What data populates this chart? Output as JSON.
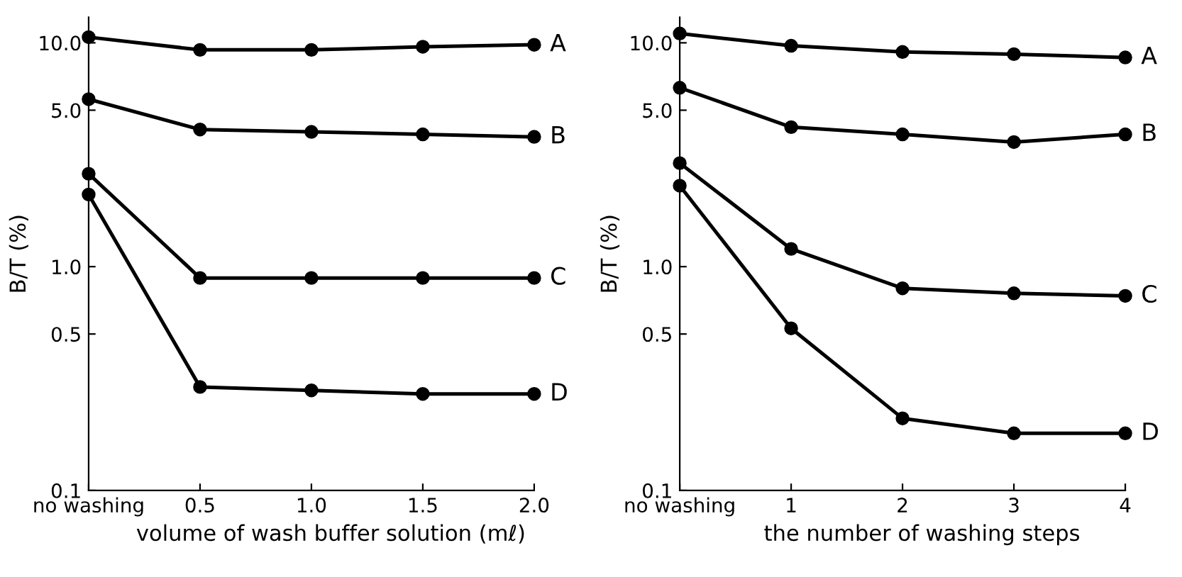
{
  "chart_data": [
    {
      "type": "line",
      "xlabel": "volume of wash buffer solution (mℓ)",
      "ylabel": "B/T (%)",
      "categories": [
        "no washing",
        "0.5",
        "1.0",
        "1.5",
        "2.0"
      ],
      "series": [
        {
          "name": "A",
          "color": "#000000",
          "values": [
            10.6,
            9.3,
            9.3,
            9.6,
            9.8
          ]
        },
        {
          "name": "B",
          "color": "#000000",
          "values": [
            5.6,
            4.1,
            4.0,
            3.9,
            3.8
          ]
        },
        {
          "name": "C",
          "color": "#000000",
          "values": [
            2.6,
            0.89,
            0.89,
            0.89,
            0.89
          ]
        },
        {
          "name": "D",
          "color": "#000000",
          "values": [
            2.1,
            0.29,
            0.28,
            0.27,
            0.27
          ]
        }
      ],
      "log": "y",
      "ylim": [
        0.1,
        13
      ],
      "yticks": [
        {
          "value": 0.1,
          "label": "0.1"
        },
        {
          "value": 0.5,
          "label": "0.5"
        },
        {
          "value": 1,
          "label": "1.0"
        },
        {
          "value": 5,
          "label": "5.0"
        },
        {
          "value": 10,
          "label": "10.0"
        }
      ],
      "marker": "circle",
      "line_style": "solid",
      "grid": false,
      "legend": false
    },
    {
      "type": "line",
      "xlabel": "the number of washing steps",
      "ylabel": "B/T (%)",
      "categories": [
        "no washing",
        "1",
        "2",
        "3",
        "4"
      ],
      "series": [
        {
          "name": "A",
          "color": "#000000",
          "values": [
            11.0,
            9.7,
            9.1,
            8.9,
            8.6
          ]
        },
        {
          "name": "B",
          "color": "#000000",
          "values": [
            6.3,
            4.2,
            3.9,
            3.6,
            3.9
          ]
        },
        {
          "name": "C",
          "color": "#000000",
          "values": [
            2.9,
            1.2,
            0.8,
            0.76,
            0.74
          ]
        },
        {
          "name": "D",
          "color": "#000000",
          "values": [
            2.3,
            0.53,
            0.21,
            0.18,
            0.18
          ]
        }
      ],
      "log": "y",
      "ylim": [
        0.1,
        13
      ],
      "yticks": [
        {
          "value": 0.1,
          "label": "0.1"
        },
        {
          "value": 0.5,
          "label": "0.5"
        },
        {
          "value": 1,
          "label": "1.0"
        },
        {
          "value": 5,
          "label": "5.0"
        },
        {
          "value": 10,
          "label": "10.0"
        }
      ],
      "marker": "circle",
      "line_style": "solid",
      "grid": false,
      "legend": false
    }
  ]
}
